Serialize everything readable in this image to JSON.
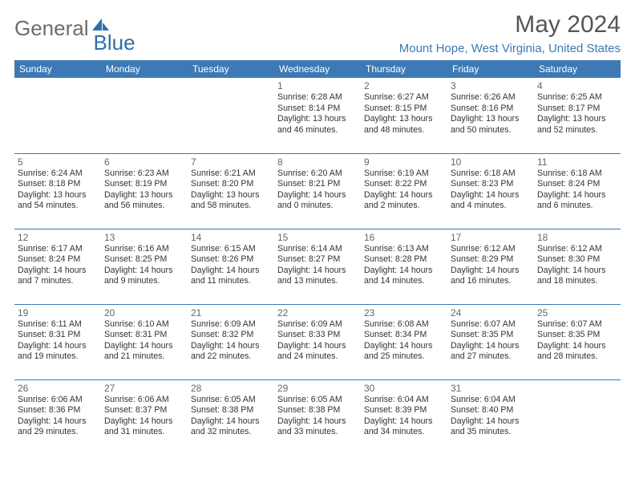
{
  "logo": {
    "word1": "General",
    "word2": "Blue"
  },
  "title": "May 2024",
  "location": "Mount Hope, West Virginia, United States",
  "colors": {
    "header_bg": "#3c79b5",
    "header_text": "#ffffff",
    "row_border": "#3c79b5",
    "title_text": "#555555",
    "location_text": "#3c79b5",
    "logo_gray": "#6d6d6d",
    "logo_blue": "#2f6fa8"
  },
  "weekdays": [
    "Sunday",
    "Monday",
    "Tuesday",
    "Wednesday",
    "Thursday",
    "Friday",
    "Saturday"
  ],
  "weeks": [
    [
      null,
      null,
      null,
      {
        "d": "1",
        "sr": "6:28 AM",
        "ss": "8:14 PM",
        "dl": "13 hours and 46 minutes."
      },
      {
        "d": "2",
        "sr": "6:27 AM",
        "ss": "8:15 PM",
        "dl": "13 hours and 48 minutes."
      },
      {
        "d": "3",
        "sr": "6:26 AM",
        "ss": "8:16 PM",
        "dl": "13 hours and 50 minutes."
      },
      {
        "d": "4",
        "sr": "6:25 AM",
        "ss": "8:17 PM",
        "dl": "13 hours and 52 minutes."
      }
    ],
    [
      {
        "d": "5",
        "sr": "6:24 AM",
        "ss": "8:18 PM",
        "dl": "13 hours and 54 minutes."
      },
      {
        "d": "6",
        "sr": "6:23 AM",
        "ss": "8:19 PM",
        "dl": "13 hours and 56 minutes."
      },
      {
        "d": "7",
        "sr": "6:21 AM",
        "ss": "8:20 PM",
        "dl": "13 hours and 58 minutes."
      },
      {
        "d": "8",
        "sr": "6:20 AM",
        "ss": "8:21 PM",
        "dl": "14 hours and 0 minutes."
      },
      {
        "d": "9",
        "sr": "6:19 AM",
        "ss": "8:22 PM",
        "dl": "14 hours and 2 minutes."
      },
      {
        "d": "10",
        "sr": "6:18 AM",
        "ss": "8:23 PM",
        "dl": "14 hours and 4 minutes."
      },
      {
        "d": "11",
        "sr": "6:18 AM",
        "ss": "8:24 PM",
        "dl": "14 hours and 6 minutes."
      }
    ],
    [
      {
        "d": "12",
        "sr": "6:17 AM",
        "ss": "8:24 PM",
        "dl": "14 hours and 7 minutes."
      },
      {
        "d": "13",
        "sr": "6:16 AM",
        "ss": "8:25 PM",
        "dl": "14 hours and 9 minutes."
      },
      {
        "d": "14",
        "sr": "6:15 AM",
        "ss": "8:26 PM",
        "dl": "14 hours and 11 minutes."
      },
      {
        "d": "15",
        "sr": "6:14 AM",
        "ss": "8:27 PM",
        "dl": "14 hours and 13 minutes."
      },
      {
        "d": "16",
        "sr": "6:13 AM",
        "ss": "8:28 PM",
        "dl": "14 hours and 14 minutes."
      },
      {
        "d": "17",
        "sr": "6:12 AM",
        "ss": "8:29 PM",
        "dl": "14 hours and 16 minutes."
      },
      {
        "d": "18",
        "sr": "6:12 AM",
        "ss": "8:30 PM",
        "dl": "14 hours and 18 minutes."
      }
    ],
    [
      {
        "d": "19",
        "sr": "6:11 AM",
        "ss": "8:31 PM",
        "dl": "14 hours and 19 minutes."
      },
      {
        "d": "20",
        "sr": "6:10 AM",
        "ss": "8:31 PM",
        "dl": "14 hours and 21 minutes."
      },
      {
        "d": "21",
        "sr": "6:09 AM",
        "ss": "8:32 PM",
        "dl": "14 hours and 22 minutes."
      },
      {
        "d": "22",
        "sr": "6:09 AM",
        "ss": "8:33 PM",
        "dl": "14 hours and 24 minutes."
      },
      {
        "d": "23",
        "sr": "6:08 AM",
        "ss": "8:34 PM",
        "dl": "14 hours and 25 minutes."
      },
      {
        "d": "24",
        "sr": "6:07 AM",
        "ss": "8:35 PM",
        "dl": "14 hours and 27 minutes."
      },
      {
        "d": "25",
        "sr": "6:07 AM",
        "ss": "8:35 PM",
        "dl": "14 hours and 28 minutes."
      }
    ],
    [
      {
        "d": "26",
        "sr": "6:06 AM",
        "ss": "8:36 PM",
        "dl": "14 hours and 29 minutes."
      },
      {
        "d": "27",
        "sr": "6:06 AM",
        "ss": "8:37 PM",
        "dl": "14 hours and 31 minutes."
      },
      {
        "d": "28",
        "sr": "6:05 AM",
        "ss": "8:38 PM",
        "dl": "14 hours and 32 minutes."
      },
      {
        "d": "29",
        "sr": "6:05 AM",
        "ss": "8:38 PM",
        "dl": "14 hours and 33 minutes."
      },
      {
        "d": "30",
        "sr": "6:04 AM",
        "ss": "8:39 PM",
        "dl": "14 hours and 34 minutes."
      },
      {
        "d": "31",
        "sr": "6:04 AM",
        "ss": "8:40 PM",
        "dl": "14 hours and 35 minutes."
      },
      null
    ]
  ],
  "labels": {
    "sunrise": "Sunrise:",
    "sunset": "Sunset:",
    "daylight": "Daylight:"
  }
}
